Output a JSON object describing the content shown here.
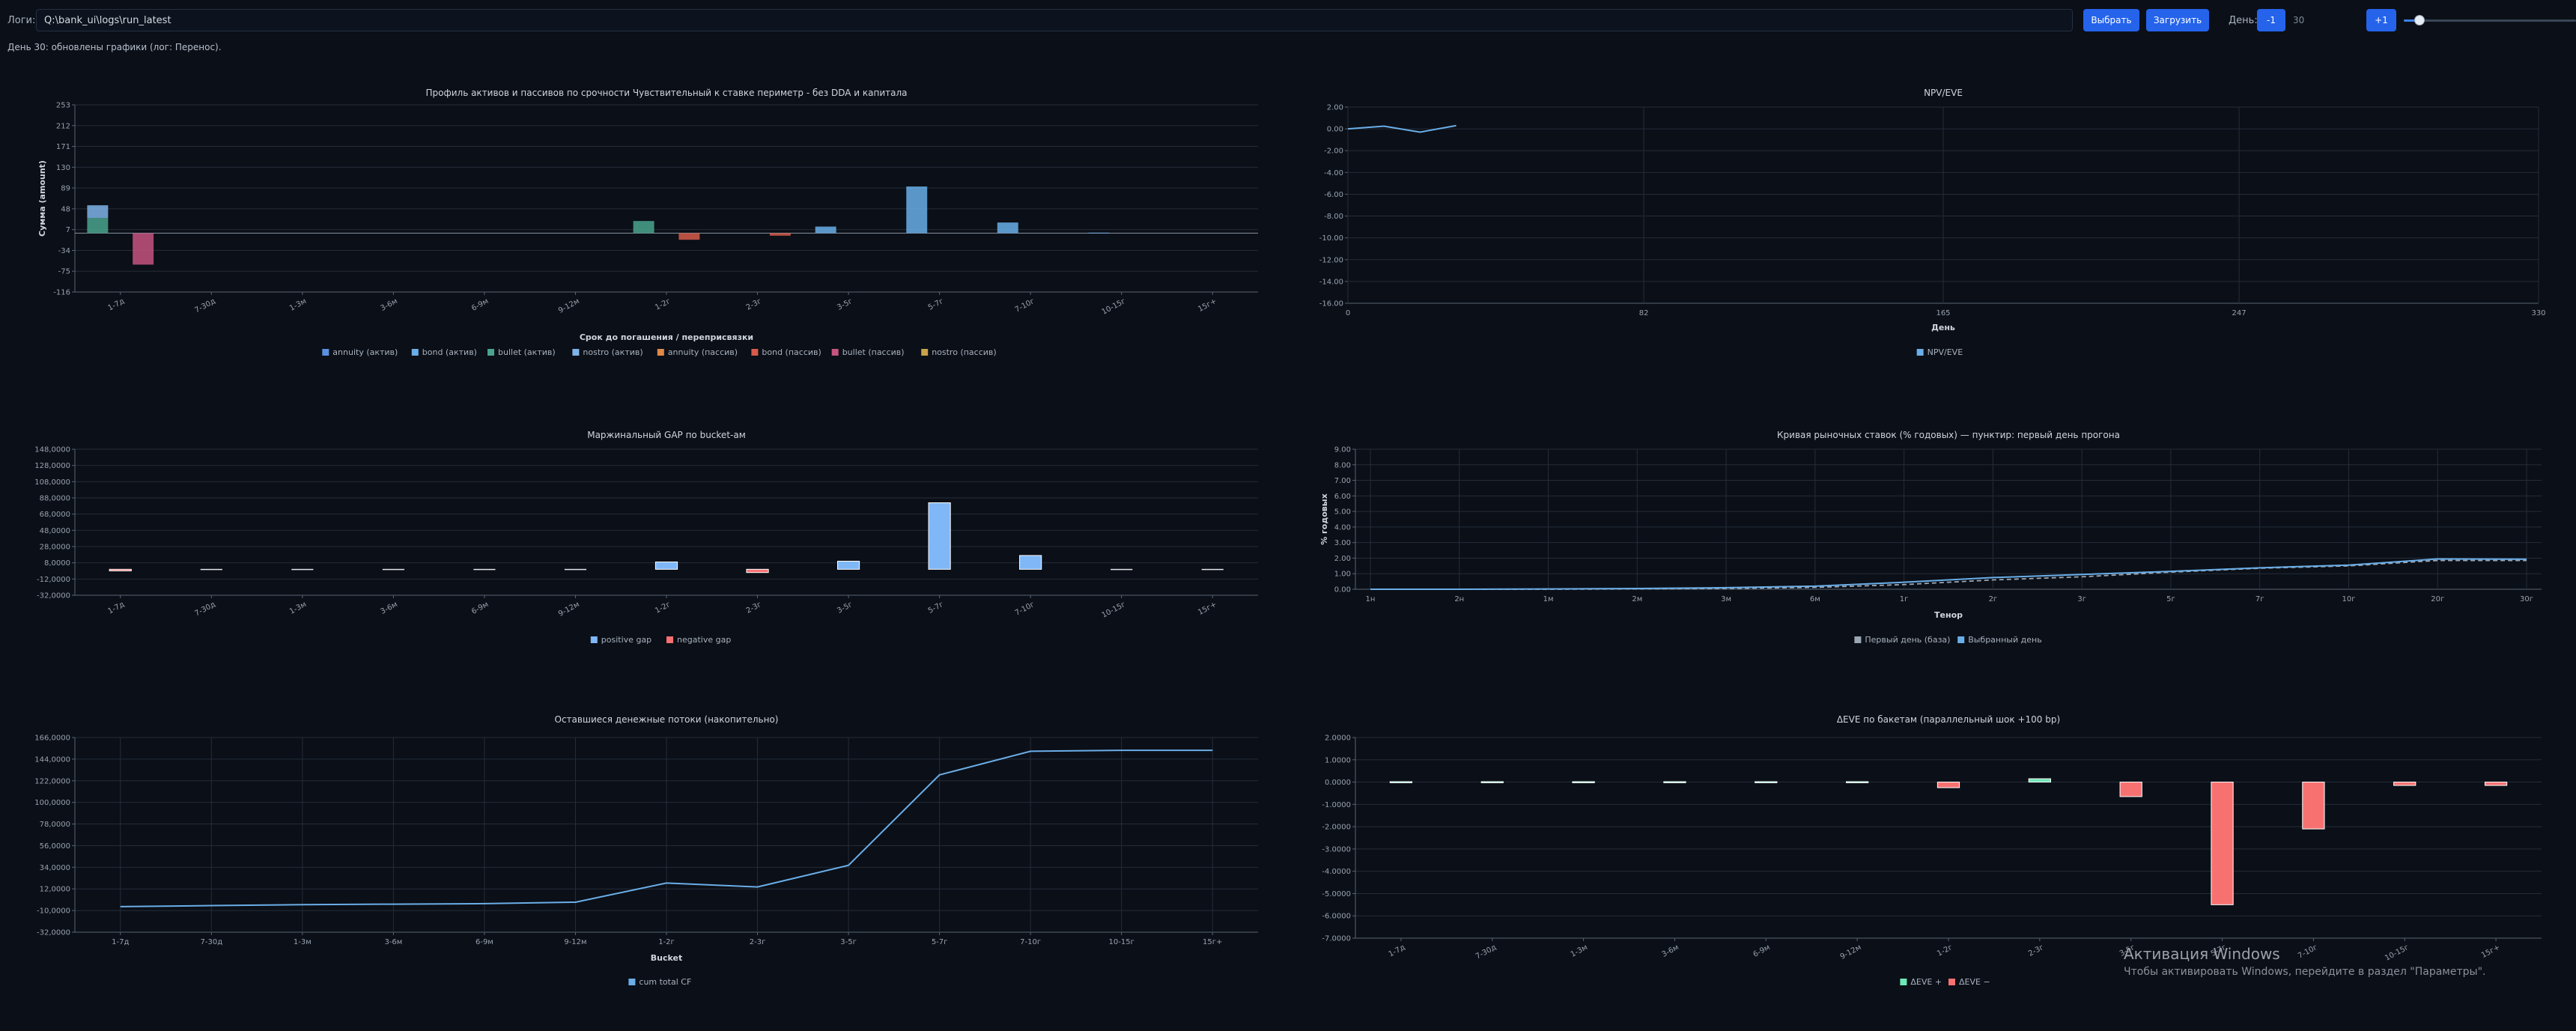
{
  "toolbar": {
    "logs_label": "Логи:",
    "path_value": "Q:\\bank_ui\\logs\\run_latest",
    "select_label": "Выбрать",
    "load_label": "Загрузить",
    "day_label": "День:",
    "minus_label": "-1",
    "day_value": "30",
    "plus_label": "+1",
    "day_slider_fraction": 0.09
  },
  "status_text": "День 30: обновлены графики (лог: Перенос).",
  "colors": {
    "accent": "#2563eb",
    "series_blue": "#6aaee8",
    "positive": "#7fb7f7",
    "negative": "#f87171",
    "teal": "#4aa38e",
    "pink": "#c65480"
  },
  "charts": {
    "profile": {
      "title": "Профиль активов и пассивов по срочности Чувствительный к ставке периметр - без DDA и капитала",
      "xlabel": "Срок до погашения / переприсвязки",
      "ylabel": "Сумма (amount)",
      "legend": [
        {
          "label": "annuity (актив)",
          "color": "#5b8fe0"
        },
        {
          "label": "bond (актив)",
          "color": "#6aaee8"
        },
        {
          "label": "bullet (актив)",
          "color": "#4aa38e"
        },
        {
          "label": "nostro (актив)",
          "color": "#7fb3e8"
        },
        {
          "label": "annuity (пассив)",
          "color": "#e08a4a"
        },
        {
          "label": "bond (пассив)",
          "color": "#d65b4a"
        },
        {
          "label": "bullet (пассив)",
          "color": "#c65480"
        },
        {
          "label": "nostro (пассив)",
          "color": "#c9a24a"
        }
      ]
    },
    "npv": {
      "title": "NPV/EVE",
      "xlabel": "День",
      "legend": [
        {
          "label": "NPV/EVE",
          "color": "#6aaee8"
        }
      ]
    },
    "gap": {
      "title": "Маржинальный GAP по bucket-ам",
      "legend": [
        {
          "label": "positive gap",
          "color": "#7fb7f7"
        },
        {
          "label": "negative gap",
          "color": "#f87171"
        }
      ]
    },
    "curve": {
      "title": "Кривая рыночных ставок (% годовых) — пунктир: первый день прогона",
      "xlabel": "Тенор",
      "ylabel": "% годовых",
      "legend": [
        {
          "label": "Первый день (база)",
          "color": "#9aa6b4"
        },
        {
          "label": "Выбранный день",
          "color": "#6aaee8"
        }
      ]
    },
    "cumcf": {
      "title": "Оставшиеся денежные потоки (накопительно)",
      "xlabel": "Bucket",
      "legend": [
        {
          "label": "cum total CF",
          "color": "#6aaee8"
        }
      ]
    },
    "deve": {
      "title": "ΔEVE по бакетам (параллельный шок +100 bp)",
      "legend": [
        {
          "label": "ΔEVE +",
          "color": "#6ee7b7"
        },
        {
          "label": "ΔEVE −",
          "color": "#f87171"
        }
      ]
    }
  },
  "chart_data": [
    {
      "id": "profile",
      "type": "bar",
      "categories": [
        "1-7д",
        "7-30д",
        "1-3м",
        "3-6м",
        "6-9м",
        "9-12м",
        "1-2г",
        "2-3г",
        "3-5г",
        "5-7г",
        "7-10г",
        "10-15г",
        "15г+"
      ],
      "yticks": [
        "253",
        "212",
        "171",
        "130",
        "89",
        "48",
        "7",
        "-34",
        "-75",
        "-116"
      ],
      "ylim": [
        -116,
        253
      ],
      "stacks": [
        {
          "category": "1-7д",
          "offset": -0.25,
          "segments": [
            {
              "series": "bullet (актив)",
              "value": 30
            },
            {
              "series": "nostro (актив)",
              "value": 25
            }
          ]
        },
        {
          "category": "1-7д",
          "offset": 0.25,
          "segments": [
            {
              "series": "bullet (пассив)",
              "value": -62
            }
          ]
        },
        {
          "category": "1-2г",
          "offset": -0.25,
          "segments": [
            {
              "series": "bullet (актив)",
              "value": 24
            }
          ]
        },
        {
          "category": "1-2г",
          "offset": 0.25,
          "segments": [
            {
              "series": "bond (пассив)",
              "value": -13
            }
          ]
        },
        {
          "category": "2-3г",
          "offset": 0.25,
          "segments": [
            {
              "series": "bond (пассив)",
              "value": -5
            }
          ]
        },
        {
          "category": "3-5г",
          "offset": -0.25,
          "segments": [
            {
              "series": "bond (актив)",
              "value": 13
            }
          ]
        },
        {
          "category": "5-7г",
          "offset": -0.25,
          "segments": [
            {
              "series": "bond (актив)",
              "value": 92
            }
          ]
        },
        {
          "category": "7-10г",
          "offset": -0.25,
          "segments": [
            {
              "series": "bond (актив)",
              "value": 21
            }
          ]
        },
        {
          "category": "10-15г",
          "offset": -0.25,
          "segments": [
            {
              "series": "bond (актив)",
              "value": 1
            }
          ]
        }
      ]
    },
    {
      "id": "npv",
      "type": "line",
      "series": [
        {
          "name": "NPV/EVE",
          "x": [
            0,
            10,
            20,
            30
          ],
          "y": [
            0.0,
            0.25,
            -0.3,
            0.3
          ]
        }
      ],
      "xticks": [
        0,
        82,
        165,
        247,
        330
      ],
      "xlim": [
        0,
        330
      ],
      "yticks": [
        "2.00",
        "0.00",
        "-2.00",
        "-4.00",
        "-6.00",
        "-8.00",
        "-10.00",
        "-12.00",
        "-14.00",
        "-16.00"
      ],
      "ylim": [
        -16,
        2
      ]
    },
    {
      "id": "gap",
      "type": "bar",
      "categories": [
        "1-7д",
        "7-30д",
        "1-3м",
        "3-6м",
        "6-9м",
        "9-12м",
        "1-2г",
        "2-3г",
        "3-5г",
        "5-7г",
        "7-10г",
        "10-15г",
        "15г+"
      ],
      "values": [
        -2000,
        0,
        0,
        0,
        0,
        0,
        9000,
        -4000,
        10000,
        82000,
        17000,
        0,
        0
      ],
      "yticks": [
        "148,0000",
        "128,0000",
        "108,0000",
        "88,0000",
        "68,0000",
        "48,0000",
        "28,0000",
        "8,0000",
        "-12,0000",
        "-32,0000"
      ],
      "ylim": [
        -32000,
        148000
      ]
    },
    {
      "id": "curve",
      "type": "line",
      "categories": [
        "1н",
        "2н",
        "1м",
        "2м",
        "3м",
        "6м",
        "1г",
        "2г",
        "3г",
        "5г",
        "7г",
        "10г",
        "20г",
        "30г"
      ],
      "series": [
        {
          "name": "Первый день (база)",
          "values": [
            0.0,
            0.0,
            0.0,
            0.02,
            0.05,
            0.12,
            0.3,
            0.6,
            0.8,
            1.1,
            1.35,
            1.5,
            1.85,
            1.85
          ]
        },
        {
          "name": "Выбранный день",
          "values": [
            0.0,
            0.0,
            0.02,
            0.05,
            0.1,
            0.2,
            0.45,
            0.75,
            0.95,
            1.15,
            1.38,
            1.55,
            1.95,
            1.93
          ]
        }
      ],
      "yticks": [
        "9.00",
        "8.00",
        "7.00",
        "6.00",
        "5.00",
        "4.00",
        "3.00",
        "2.00",
        "1.00",
        "0.00"
      ],
      "ylim": [
        0,
        9
      ]
    },
    {
      "id": "cumcf",
      "type": "line",
      "categories": [
        "1-7д",
        "7-30д",
        "1-3м",
        "3-6м",
        "6-9м",
        "9-12м",
        "1-2г",
        "2-3г",
        "3-5г",
        "5-7г",
        "7-10г",
        "10-15г",
        "15г+"
      ],
      "series": [
        {
          "name": "cum total CF",
          "values": [
            -6000,
            -5000,
            -4000,
            -3500,
            -3000,
            -1500,
            18000,
            14000,
            36000,
            128000,
            152000,
            153000,
            153000
          ]
        }
      ],
      "yticks": [
        "166,0000",
        "144,0000",
        "122,0000",
        "100,0000",
        "78,0000",
        "56,0000",
        "34,0000",
        "12,0000",
        "-10,0000",
        "-32,0000"
      ],
      "ylim": [
        -32000,
        166000
      ]
    },
    {
      "id": "deve",
      "type": "bar",
      "categories": [
        "1-7д",
        "7-30д",
        "1-3м",
        "3-6м",
        "6-9м",
        "9-12м",
        "1-2г",
        "2-3г",
        "3-5г",
        "5-7г",
        "7-10г",
        "10-15г",
        "15г+"
      ],
      "values": [
        0.02,
        0.02,
        0.02,
        0.02,
        0.02,
        0.02,
        -0.25,
        0.15,
        -0.65,
        -5.5,
        -2.1,
        -0.15,
        -0.15
      ],
      "yticks": [
        "2.0000",
        "1.0000",
        "0.0000",
        "-1.0000",
        "-2.0000",
        "-3.0000",
        "-4.0000",
        "-5.0000",
        "-6.0000",
        "-7.0000"
      ],
      "ylim": [
        -7,
        2
      ]
    }
  ],
  "watermark": {
    "title": "Активация Windows",
    "subtitle": "Чтобы активировать Windows, перейдите в раздел \"Параметры\"."
  }
}
